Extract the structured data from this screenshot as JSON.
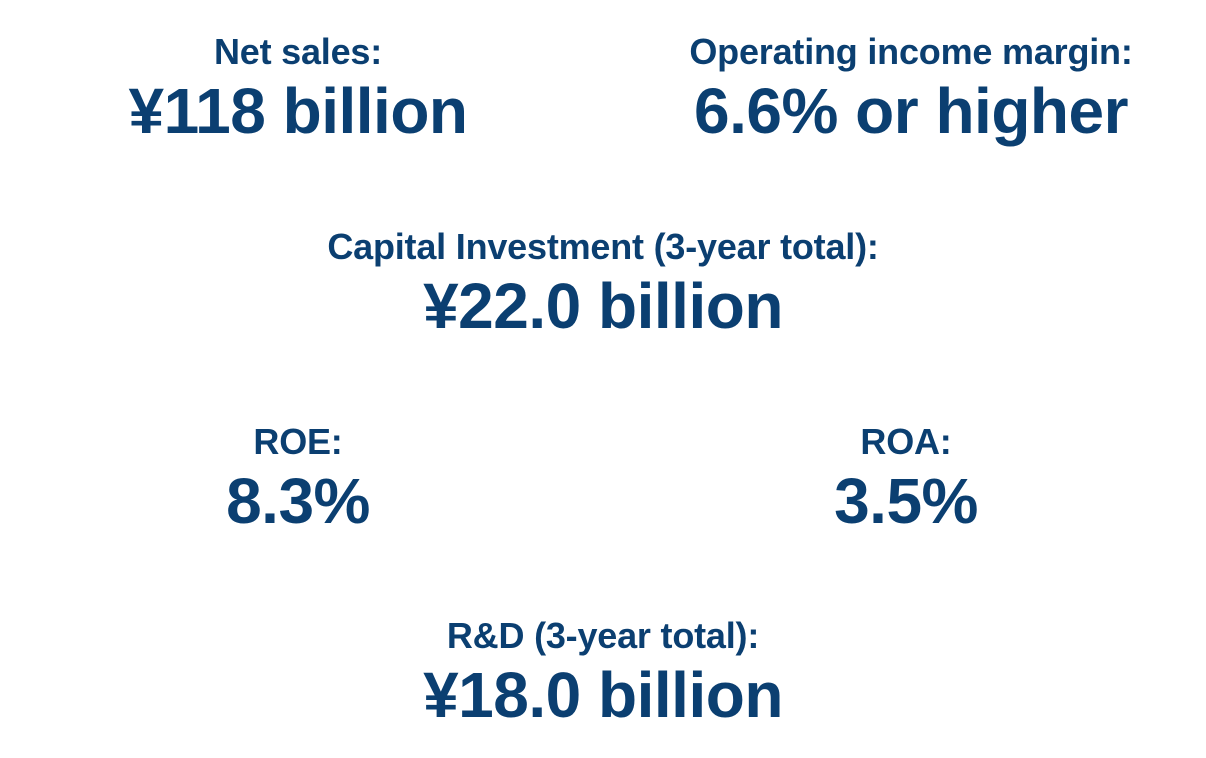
{
  "metrics": {
    "net_sales": {
      "label": "Net sales:",
      "value": "¥118 billion"
    },
    "operating_income_margin": {
      "label": "Operating income margin:",
      "value": "6.6% or higher"
    },
    "capital_investment": {
      "label": "Capital Investment (3-year total):",
      "value": "¥22.0 billion"
    },
    "roe": {
      "label": "ROE:",
      "value": "8.3%"
    },
    "roa": {
      "label": "ROA:",
      "value": "3.5%"
    },
    "rd": {
      "label": "R&D (3-year total):",
      "value": "¥18.0 billion"
    }
  },
  "colors": {
    "text": "#0b3f71",
    "background": "#ffffff"
  }
}
